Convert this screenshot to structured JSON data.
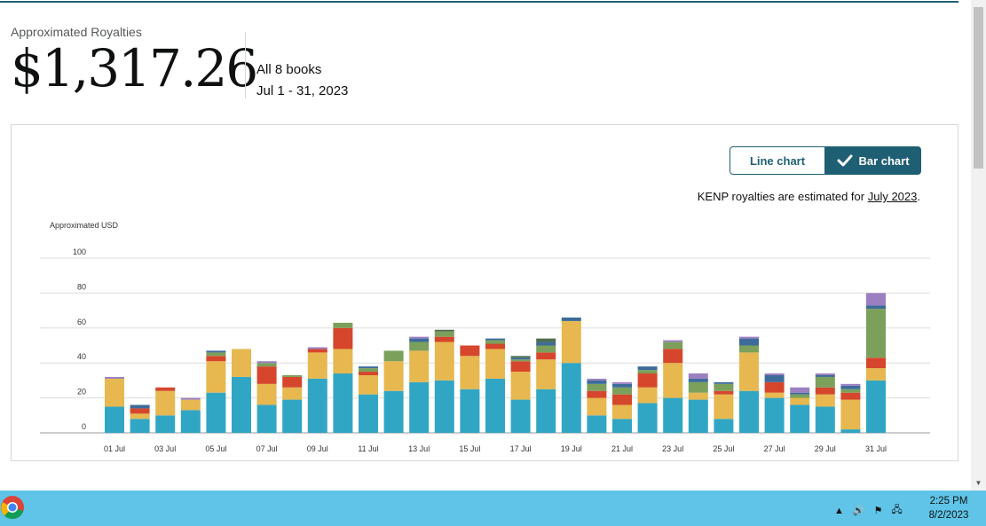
{
  "summary": {
    "label": "Approximated Royalties",
    "amount": "$1,317.26",
    "scope": "All 8 books",
    "date_range": "Jul 1 - 31, 2023"
  },
  "toggle": {
    "line_label": "Line chart",
    "bar_label": "Bar chart",
    "selected": "Bar chart"
  },
  "note": {
    "prefix": "KENP royalties are estimated for ",
    "link": "July 2023",
    "suffix": "."
  },
  "chart_data": {
    "type": "bar",
    "stacked": true,
    "ylabel": "Approximated USD",
    "ylim": [
      0,
      100
    ],
    "yticks": [
      0,
      20,
      40,
      60,
      80,
      100
    ],
    "grid": true,
    "categories": [
      "01 Jul",
      "02 Jul",
      "03 Jul",
      "04 Jul",
      "05 Jul",
      "06 Jul",
      "07 Jul",
      "08 Jul",
      "09 Jul",
      "10 Jul",
      "11 Jul",
      "12 Jul",
      "13 Jul",
      "14 Jul",
      "15 Jul",
      "16 Jul",
      "17 Jul",
      "18 Jul",
      "19 Jul",
      "20 Jul",
      "21 Jul",
      "22 Jul",
      "23 Jul",
      "24 Jul",
      "25 Jul",
      "26 Jul",
      "27 Jul",
      "28 Jul",
      "29 Jul",
      "30 Jul",
      "31 Jul"
    ],
    "tick_labels": [
      "01 Jul",
      "03 Jul",
      "05 Jul",
      "07 Jul",
      "09 Jul",
      "11 Jul",
      "13 Jul",
      "15 Jul",
      "17 Jul",
      "19 Jul",
      "21 Jul",
      "23 Jul",
      "25 Jul",
      "27 Jul",
      "29 Jul",
      "31 Jul"
    ],
    "series": [
      {
        "color": "#31a6c4",
        "values": [
          15,
          8,
          10,
          13,
          23,
          32,
          16,
          19,
          31,
          34,
          22,
          24,
          29,
          30,
          25,
          31,
          19,
          25,
          40,
          10,
          8,
          17,
          20,
          19,
          8,
          24,
          20,
          16,
          15,
          2,
          30
        ]
      },
      {
        "color": "#e6b84f",
        "values": [
          16,
          3,
          14,
          6,
          18,
          16,
          12,
          7,
          15,
          14,
          11,
          17,
          18,
          22,
          19,
          17,
          16,
          17,
          24,
          10,
          8,
          9,
          20,
          4,
          14,
          22,
          3,
          4,
          7,
          17,
          7
        ]
      },
      {
        "color": "#d6462c",
        "values": [
          0,
          3,
          2,
          0,
          3,
          0,
          10,
          6,
          2,
          12,
          2,
          0,
          0,
          3,
          6,
          3,
          6,
          4,
          0,
          4,
          6,
          8,
          8,
          0,
          2,
          0,
          6,
          0,
          4,
          4,
          6
        ]
      },
      {
        "color": "#7ba05b",
        "values": [
          0,
          0,
          0,
          0,
          2,
          0,
          2,
          1,
          0,
          3,
          2,
          6,
          5,
          3,
          0,
          2,
          1,
          4,
          0,
          4,
          4,
          2,
          4,
          6,
          4,
          4,
          0,
          2,
          6,
          2,
          28
        ]
      },
      {
        "color": "#3d6b9a",
        "values": [
          0,
          2,
          0,
          0,
          1,
          0,
          0,
          0,
          0,
          0,
          1,
          0,
          2,
          0,
          0,
          1,
          1,
          2,
          2,
          2,
          2,
          2,
          0,
          2,
          1,
          4,
          4,
          1,
          1,
          2,
          2
        ]
      },
      {
        "color": "#4f6e4f",
        "values": [
          0,
          0,
          0,
          0,
          0,
          0,
          0,
          0,
          0,
          0,
          0,
          0,
          0,
          1,
          0,
          0,
          1,
          2,
          0,
          0,
          0,
          0,
          0,
          0,
          0,
          0,
          0,
          0,
          0,
          0,
          0
        ]
      },
      {
        "color": "#9b7fc0",
        "values": [
          1,
          0,
          0,
          1,
          0,
          0,
          1,
          0,
          1,
          0,
          0,
          0,
          1,
          0,
          0,
          0,
          0,
          0,
          0,
          1,
          1,
          0,
          1,
          3,
          0,
          1,
          1,
          3,
          1,
          1,
          7
        ]
      }
    ]
  },
  "taskbar": {
    "time": "2:25 PM",
    "date": "8/2/2023"
  }
}
